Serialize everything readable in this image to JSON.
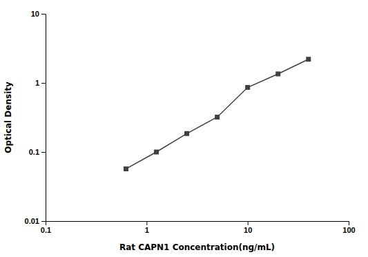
{
  "chart_data": {
    "type": "line",
    "x": [
      0.625,
      1.25,
      2.5,
      5.0,
      10.0,
      20.0,
      40.0
    ],
    "values": [
      0.057,
      0.1,
      0.185,
      0.32,
      0.86,
      1.35,
      2.2
    ],
    "xlabel": "Rat CAPN1 Concentration(ng/mL)",
    "ylabel": "Optical Density",
    "xlim": [
      0.1,
      100
    ],
    "ylim": [
      0.01,
      10
    ],
    "xticks": [
      0.1,
      1,
      10,
      100
    ],
    "yticks": [
      0.01,
      0.1,
      1,
      10
    ],
    "log": true,
    "color": "#404040",
    "marker": "square"
  }
}
